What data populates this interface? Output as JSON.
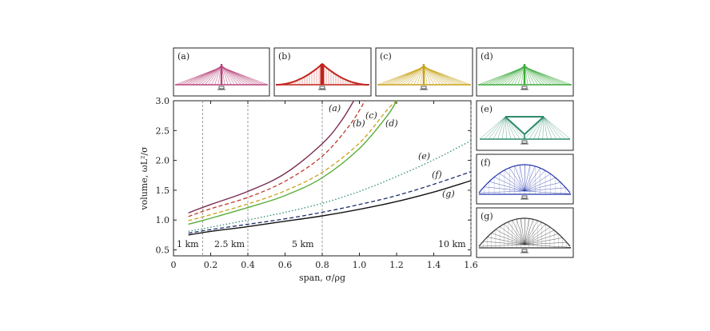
{
  "chart_data": {
    "type": "line",
    "xlabel": "span, σ/ρg",
    "ylabel": "volume, ωL²/σ",
    "xlim": [
      0,
      1.6
    ],
    "ylim": [
      0.4,
      3.0
    ],
    "xticks": [
      "0",
      "0.2",
      "0.4",
      "0.6",
      "0.8",
      "1.0",
      "1.2",
      "1.4",
      "1.6"
    ],
    "yticks": [
      "0.5",
      "1.0",
      "1.5",
      "2.0",
      "2.5",
      "3.0"
    ],
    "reference_lines": [
      {
        "x": 0.157,
        "label": "1 km"
      },
      {
        "x": 0.4,
        "label": "2.5 km"
      },
      {
        "x": 0.8,
        "label": "5 km"
      },
      {
        "x": 1.6,
        "label": "10 km"
      }
    ],
    "series": [
      {
        "name": "(a)",
        "color": "#7b2d52",
        "style": "solid",
        "x": [
          0.08,
          0.2,
          0.4,
          0.6,
          0.8,
          0.9,
          0.97
        ],
        "y": [
          1.12,
          1.26,
          1.48,
          1.78,
          2.28,
          2.65,
          3.0
        ]
      },
      {
        "name": "(b)",
        "color": "#c0392b",
        "style": "dashed",
        "x": [
          0.08,
          0.2,
          0.4,
          0.6,
          0.8,
          0.95,
          1.03
        ],
        "y": [
          1.06,
          1.19,
          1.38,
          1.65,
          2.07,
          2.6,
          3.0
        ]
      },
      {
        "name": "(c)",
        "color": "#c8a21a",
        "style": "dashed",
        "x": [
          0.08,
          0.2,
          0.4,
          0.6,
          0.8,
          1.0,
          1.15,
          1.2
        ],
        "y": [
          0.99,
          1.09,
          1.27,
          1.49,
          1.8,
          2.29,
          2.85,
          3.0
        ]
      },
      {
        "name": "(d)",
        "color": "#5aae3c",
        "style": "solid",
        "x": [
          0.08,
          0.2,
          0.4,
          0.6,
          0.8,
          1.0,
          1.15,
          1.2
        ],
        "y": [
          0.93,
          1.03,
          1.21,
          1.41,
          1.71,
          2.2,
          2.75,
          3.0
        ]
      },
      {
        "name": "(e)",
        "color": "#2e8b7a",
        "style": "dotted",
        "x": [
          0.08,
          0.2,
          0.4,
          0.6,
          0.8,
          1.0,
          1.2,
          1.4,
          1.6
        ],
        "y": [
          0.81,
          0.88,
          1.0,
          1.13,
          1.28,
          1.48,
          1.73,
          2.01,
          2.33
        ]
      },
      {
        "name": "(f)",
        "color": "#1f2f6b",
        "style": "dashed",
        "x": [
          0.08,
          0.2,
          0.4,
          0.6,
          0.8,
          1.0,
          1.2,
          1.4,
          1.6
        ],
        "y": [
          0.78,
          0.84,
          0.93,
          1.02,
          1.13,
          1.26,
          1.41,
          1.6,
          1.81
        ]
      },
      {
        "name": "(g)",
        "color": "#111111",
        "style": "solid",
        "x": [
          0.08,
          0.2,
          0.4,
          0.6,
          0.8,
          1.0,
          1.2,
          1.4,
          1.6
        ],
        "y": [
          0.75,
          0.81,
          0.89,
          0.98,
          1.07,
          1.18,
          1.31,
          1.47,
          1.66
        ]
      }
    ]
  },
  "panels": [
    {
      "label": "(a)",
      "color": "#b8457a",
      "kind": "cable-fan"
    },
    {
      "label": "(b)",
      "color": "#c0241c",
      "kind": "suspension"
    },
    {
      "label": "(c)",
      "color": "#c8a21a",
      "kind": "cable-fan"
    },
    {
      "label": "(d)",
      "color": "#3caa3c",
      "kind": "cable-fan"
    },
    {
      "label": "(e)",
      "color": "#2e8b6a",
      "kind": "truss"
    },
    {
      "label": "(f)",
      "color": "#2233aa",
      "kind": "arch-fan"
    },
    {
      "label": "(g)",
      "color": "#333333",
      "kind": "arch-fan"
    }
  ]
}
